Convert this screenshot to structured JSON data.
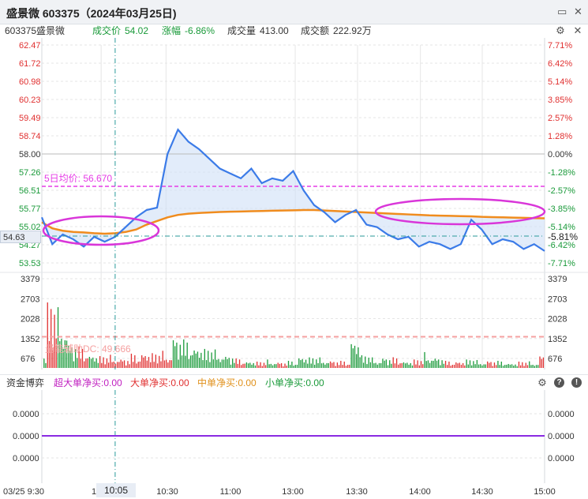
{
  "window": {
    "title": "盛景微 603375（2024年03月25日)"
  },
  "info": {
    "name": "603375盛景微",
    "price_label": "成交价",
    "price": "54.02",
    "change_label": "涨幅",
    "change": "-6.86%",
    "volume_label": "成交量",
    "volume": "413.00",
    "amount_label": "成交额",
    "amount": "222.92万"
  },
  "colors": {
    "up": "#e03030",
    "down": "#1a9a3a",
    "price_line": "#3b7be8",
    "avg_line": "#f08c1e",
    "ma5": "#e63ce6",
    "highlight": "#d936d9"
  },
  "price_axis": {
    "left": [
      "62.47",
      "61.72",
      "60.98",
      "60.23",
      "59.49",
      "58.74",
      "58.00",
      "57.26",
      "56.51",
      "55.77",
      "55.02",
      "54.27",
      "53.53"
    ],
    "right": [
      "7.71%",
      "6.42%",
      "5.14%",
      "3.85%",
      "2.57%",
      "1.28%",
      "0.00%",
      "-1.28%",
      "-2.57%",
      "-3.85%",
      "-5.14%",
      "-6.42%",
      "-7.71%"
    ]
  },
  "volume_axis": {
    "labels": [
      "3379",
      "2703",
      "2028",
      "1352",
      "676"
    ]
  },
  "ma5": {
    "label": "5日均价: 56.670",
    "value": 56.67
  },
  "energy": {
    "label": "量能辅助DC: 49.666"
  },
  "cursor": {
    "price": "54.63",
    "change": "-5.81%",
    "time": "10:05"
  },
  "fund_flow": {
    "title": "资金博弈",
    "items": [
      {
        "label": "超大单净买:0.00",
        "color": "#c020c0"
      },
      {
        "label": "大单净买:0.00",
        "color": "#e03030"
      },
      {
        "label": "中单净买:0.00",
        "color": "#e0901a"
      },
      {
        "label": "小单净买:0.00",
        "color": "#1a9a3a"
      }
    ],
    "axis": [
      "0.0000",
      "0.0000",
      "0.0000"
    ]
  },
  "time_axis": {
    "labels": [
      "03/25 9:30",
      "1",
      "10:30",
      "11:00",
      "13:00",
      "13:30",
      "14:00",
      "14:30",
      "15:00"
    ]
  },
  "chart_data": {
    "type": "line",
    "xlabel": "",
    "ylabel": "",
    "ylim": [
      53.53,
      62.47
    ],
    "prev_close": 58.0,
    "x": [
      "09:30",
      "09:35",
      "09:40",
      "09:45",
      "09:50",
      "09:55",
      "10:00",
      "10:05",
      "10:10",
      "10:15",
      "10:20",
      "10:25",
      "10:30",
      "10:35",
      "10:40",
      "10:45",
      "10:50",
      "10:55",
      "11:00",
      "11:05",
      "11:10",
      "11:15",
      "11:20",
      "11:25",
      "13:00",
      "13:05",
      "13:10",
      "13:15",
      "13:20",
      "13:25",
      "13:30",
      "13:35",
      "13:40",
      "13:45",
      "13:50",
      "13:55",
      "14:00",
      "14:05",
      "14:10",
      "14:15",
      "14:20",
      "14:25",
      "14:30",
      "14:35",
      "14:40",
      "14:45",
      "14:50",
      "14:55",
      "15:00"
    ],
    "series": [
      {
        "values": [
          55.4,
          54.3,
          54.7,
          54.5,
          54.2,
          54.6,
          54.4,
          54.6,
          55.0,
          55.4,
          55.7,
          55.8,
          58.0,
          59.0,
          58.5,
          58.2,
          57.8,
          57.4,
          57.2,
          57.0,
          57.4,
          56.8,
          57.0,
          56.9,
          57.3,
          56.5,
          55.9,
          55.6,
          55.2,
          55.5,
          55.7,
          55.1,
          55.0,
          54.7,
          54.5,
          54.6,
          54.2,
          54.4,
          54.3,
          54.1,
          54.3,
          55.3,
          54.9,
          54.3,
          54.5,
          54.4,
          54.1,
          54.3,
          54.02
        ]
      },
      {
        "values": [
          55.2,
          54.95,
          54.85,
          54.8,
          54.78,
          54.75,
          54.73,
          54.75,
          54.8,
          54.9,
          55.1,
          55.25,
          55.4,
          55.5,
          55.55,
          55.58,
          55.6,
          55.62,
          55.63,
          55.64,
          55.65,
          55.66,
          55.67,
          55.68,
          55.69,
          55.7,
          55.7,
          55.68,
          55.66,
          55.64,
          55.62,
          55.6,
          55.58,
          55.56,
          55.54,
          55.52,
          55.5,
          55.48,
          55.47,
          55.46,
          55.45,
          55.44,
          55.42,
          55.41,
          55.4,
          55.39,
          55.38,
          55.37,
          55.36
        ]
      }
    ],
    "volume": [
      680,
      3100,
      2300,
      1200,
      900,
      700,
      560,
      500,
      450,
      600,
      800,
      700,
      650,
      1500,
      1200,
      1100,
      900,
      700,
      600,
      400,
      350,
      300,
      320,
      280,
      300,
      600,
      500,
      400,
      350,
      300,
      1500,
      600,
      400,
      500,
      450,
      350,
      400,
      600,
      500,
      300,
      350,
      400,
      300,
      350,
      300,
      250,
      300,
      250,
      620
    ],
    "volume_ylim": [
      0,
      3379
    ]
  }
}
